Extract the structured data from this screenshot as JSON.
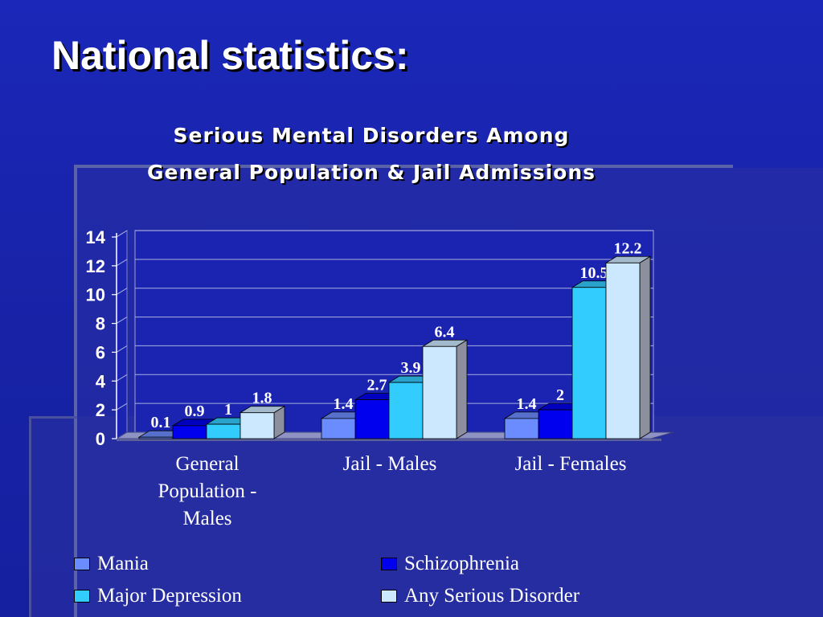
{
  "slide": {
    "title": "National statistics:"
  },
  "chart_data": {
    "type": "bar",
    "title_lines": [
      "Serious Mental Disorders Among",
      "General Population & Jail Admissions"
    ],
    "categories": [
      "General Population - Males",
      "Jail - Males",
      "Jail - Females"
    ],
    "category_label_lines": [
      [
        "General",
        "Population -",
        "Males"
      ],
      [
        "Jail - Males"
      ],
      [
        "Jail - Females"
      ]
    ],
    "series": [
      {
        "name": "Mania",
        "values": [
          0.1,
          1.4,
          1.4
        ],
        "labels": [
          "0.1",
          "1.4",
          "1.4"
        ],
        "color": "#6b8cff"
      },
      {
        "name": "Schizophrenia",
        "values": [
          0.9,
          2.7,
          2
        ],
        "labels": [
          "0.9",
          "2.7",
          "2"
        ],
        "color": "#0000ee"
      },
      {
        "name": "Major Depression",
        "values": [
          1,
          3.9,
          10.5
        ],
        "labels": [
          "1",
          "3.9",
          "10.5"
        ],
        "color": "#33ccff"
      },
      {
        "name": "Any Serious Disorder",
        "values": [
          1.8,
          6.4,
          12.2
        ],
        "labels": [
          "1.8",
          "6.4",
          "12.2"
        ],
        "color": "#cce8ff"
      }
    ],
    "ylim": [
      0,
      14
    ],
    "yticks": [
      "0",
      "2",
      "4",
      "6",
      "8",
      "10",
      "12",
      "14"
    ],
    "grid": true,
    "legend_position": "bottom",
    "projection": "3d"
  }
}
